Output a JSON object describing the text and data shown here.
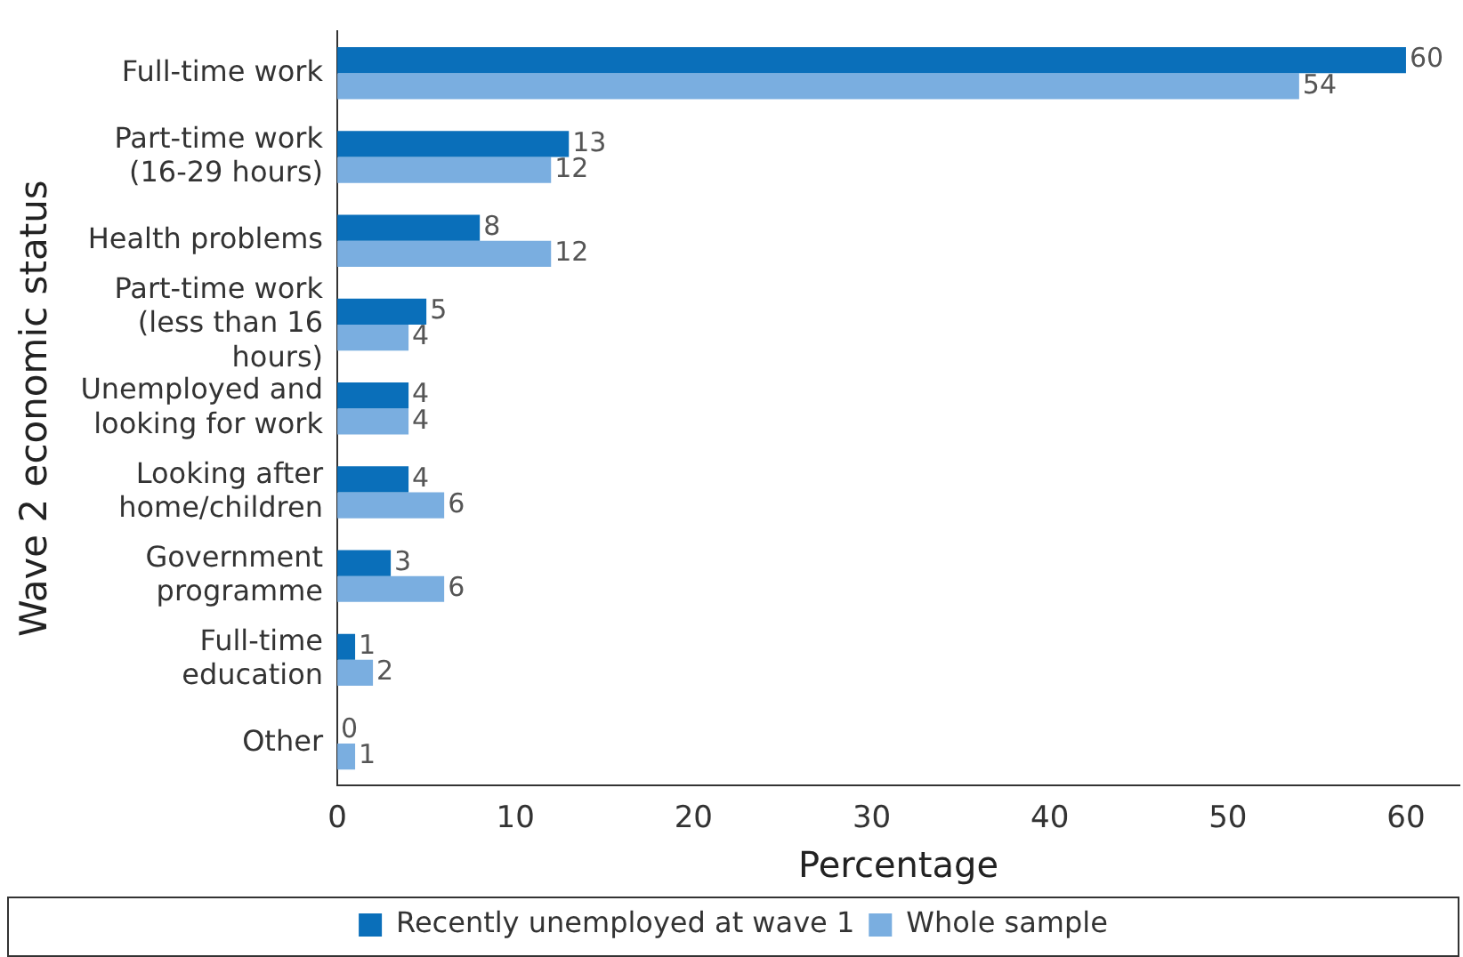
{
  "chart_data": {
    "type": "bar",
    "orientation": "horizontal",
    "xlabel": "Percentage",
    "ylabel": "Wave 2 economic status",
    "categories": [
      "Full-time work",
      "Part-time work (16-29 hours)",
      "Health problems",
      "Part-time work (less than 16 hours)",
      "Unemployed and looking for work",
      "Looking after home/children",
      "Government programme",
      "Full-time education",
      "Other"
    ],
    "series": [
      {
        "name": "Recently unemployed at wave 1",
        "color": "#0a6fba",
        "values": [
          60,
          13,
          8,
          5,
          4,
          4,
          3,
          1,
          0
        ]
      },
      {
        "name": "Whole sample",
        "color": "#7aaee0",
        "values": [
          54,
          12,
          12,
          4,
          4,
          6,
          6,
          2,
          1
        ]
      }
    ],
    "xlim": [
      0,
      63
    ],
    "xticks": [
      0,
      10,
      20,
      30,
      40,
      50,
      60
    ],
    "grid": false,
    "legend": "bottom",
    "data_labels": true
  }
}
